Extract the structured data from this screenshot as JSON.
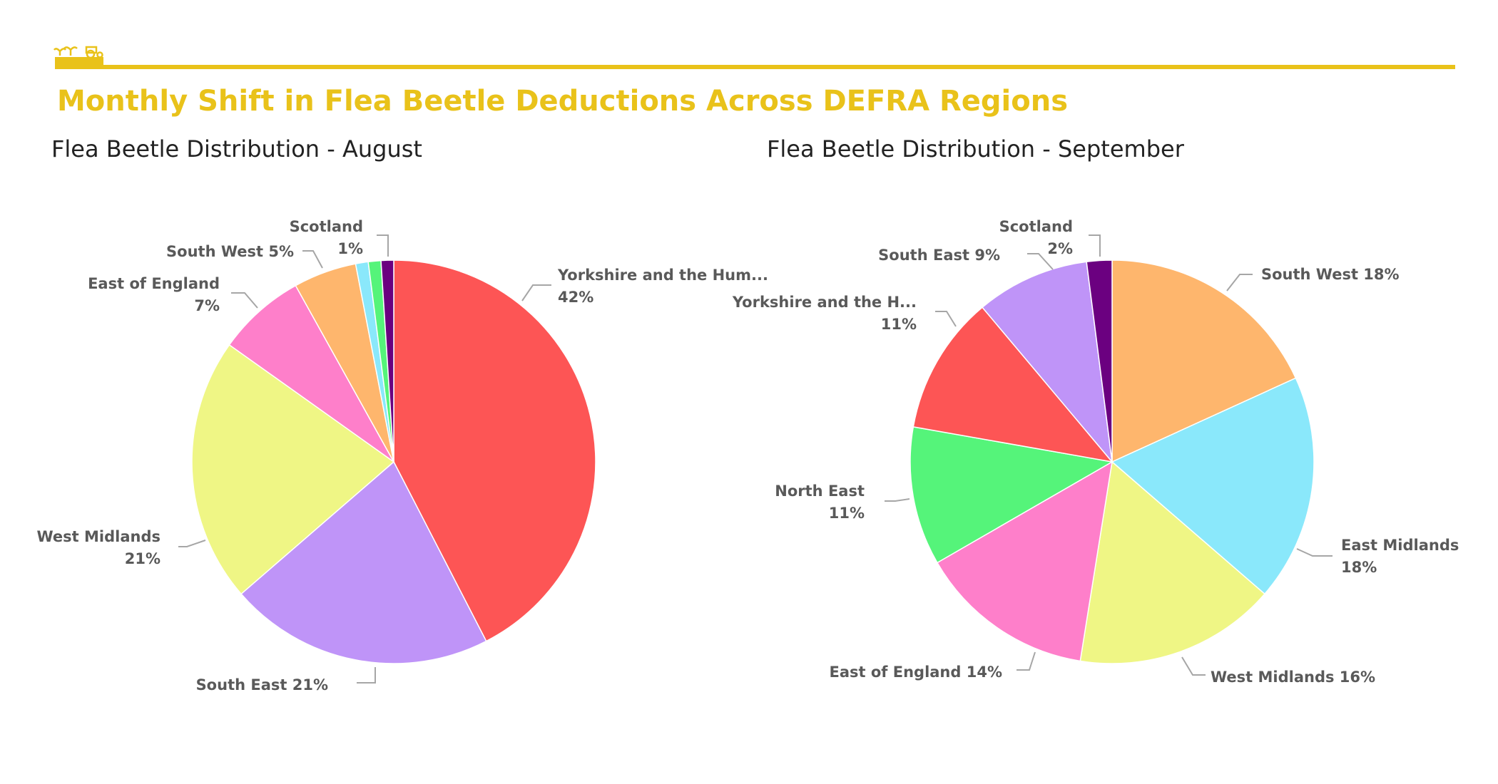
{
  "header": {
    "title": "Monthly Shift in Flea Beetle Deductions Across DEFRA Regions",
    "logo_icon": "seedling-tractor-icon",
    "accent_color": "#e9c21a"
  },
  "chart_data": [
    {
      "type": "pie",
      "title": "Flea Beetle Distribution - August",
      "start_angle_deg": 0,
      "direction": "clockwise",
      "slices": [
        {
          "name": "Yorkshire and the Hum...",
          "value": 42,
          "label": "42%",
          "color": "#fd5555",
          "label_layout": "two-line"
        },
        {
          "name": "South East",
          "value": 21,
          "label": "21%",
          "color": "#bf94f8",
          "label_layout": "one-line"
        },
        {
          "name": "West Midlands",
          "value": 21,
          "label": "21%",
          "color": "#eff685",
          "label_layout": "two-line"
        },
        {
          "name": "East of England",
          "value": 7,
          "label": "7%",
          "color": "#fe7fca",
          "label_layout": "two-line"
        },
        {
          "name": "South West",
          "value": 5,
          "label": "5%",
          "color": "#feb66d",
          "label_layout": "one-line"
        },
        {
          "name": "",
          "value": 1,
          "label": "",
          "color": "#8ae8fb",
          "label_layout": "none"
        },
        {
          "name": "",
          "value": 1,
          "label": "",
          "color": "#55f47a",
          "label_layout": "none"
        },
        {
          "name": "Scotland",
          "value": 1,
          "label": "1%",
          "color": "#6b0080",
          "label_layout": "two-line"
        }
      ]
    },
    {
      "type": "pie",
      "title": "Flea Beetle Distribution - September",
      "start_angle_deg": 0,
      "direction": "clockwise",
      "slices": [
        {
          "name": "South West",
          "value": 18,
          "label": "18%",
          "color": "#feb66d",
          "label_layout": "one-line"
        },
        {
          "name": "East Midlands",
          "value": 18,
          "label": "18%",
          "color": "#8ae8fb",
          "label_layout": "two-line"
        },
        {
          "name": "West Midlands",
          "value": 16,
          "label": "16%",
          "color": "#eff685",
          "label_layout": "one-line"
        },
        {
          "name": "East of England",
          "value": 14,
          "label": "14%",
          "color": "#fe7fca",
          "label_layout": "one-line"
        },
        {
          "name": "North East",
          "value": 11,
          "label": "11%",
          "color": "#55f47a",
          "label_layout": "two-line"
        },
        {
          "name": "Yorkshire and the H...",
          "value": 11,
          "label": "11%",
          "color": "#fd5555",
          "label_layout": "two-line"
        },
        {
          "name": "South East",
          "value": 9,
          "label": "9%",
          "color": "#bf94f8",
          "label_layout": "one-line"
        },
        {
          "name": "Scotland",
          "value": 2,
          "label": "2%",
          "color": "#6b0080",
          "label_layout": "two-line"
        }
      ]
    }
  ]
}
